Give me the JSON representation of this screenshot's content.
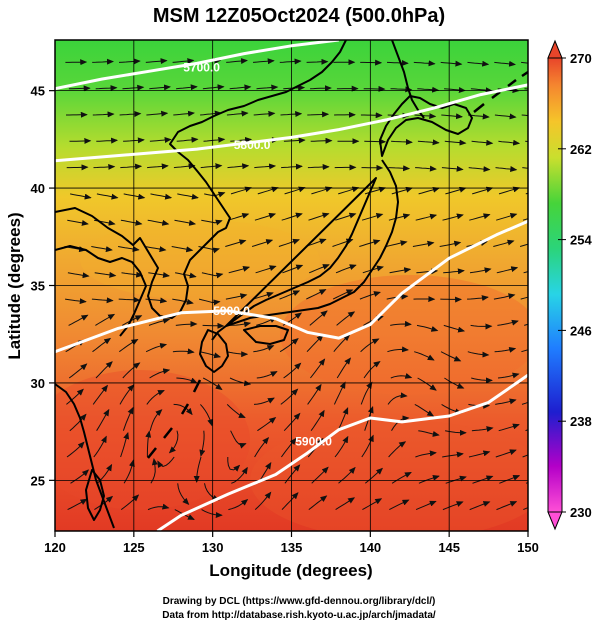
{
  "title": "MSM 12Z05Oct2024 (500.0hPa)",
  "xlabel": "Longitude (degrees)",
  "ylabel": "Latitude  (degrees)",
  "credits": {
    "line1": "Drawing by DCL (https://www.gfd-dennou.org/library/dcl/)",
    "line2": "Data from http://database.rish.kyoto-u.ac.jp/arch/jmadata/"
  },
  "chart_data": {
    "type": "heatmap",
    "variable": "temperature (K) with geopotential height contours and wind streamlines",
    "xlim": [
      120,
      150
    ],
    "ylim": [
      22.4,
      47.6
    ],
    "xticks": [
      120,
      125,
      130,
      135,
      140,
      145,
      150
    ],
    "yticks": [
      25,
      30,
      35,
      40,
      45
    ],
    "grid": true,
    "colorbar": {
      "min": 230,
      "max": 270,
      "ticks": [
        230,
        238,
        246,
        254,
        262,
        270
      ],
      "colormap": "rainbow: magenta-blue-cyan-green-yellow-orange-red"
    },
    "height_contours": [
      {
        "label": "5700.0",
        "points": [
          [
            120,
            45.1
          ],
          [
            123,
            45.6
          ],
          [
            126,
            46.0
          ],
          [
            129,
            46.4
          ],
          [
            132,
            46.9
          ],
          [
            135,
            47.3
          ],
          [
            138,
            47.6
          ]
        ]
      },
      {
        "label": "5800.0",
        "points": [
          [
            120,
            41.4
          ],
          [
            123,
            41.6
          ],
          [
            126,
            41.8
          ],
          [
            129,
            42.0
          ],
          [
            132,
            42.3
          ],
          [
            135,
            42.6
          ],
          [
            138,
            43.0
          ],
          [
            141,
            43.5
          ],
          [
            144,
            44.1
          ],
          [
            147,
            44.8
          ],
          [
            150,
            45.3
          ]
        ]
      },
      {
        "label": "5900.0",
        "points": [
          [
            120,
            31.6
          ],
          [
            122,
            32.2
          ],
          [
            124,
            32.8
          ],
          [
            126,
            33.2
          ],
          [
            128,
            33.6
          ],
          [
            131,
            33.7
          ],
          [
            134,
            33.3
          ],
          [
            136,
            32.6
          ],
          [
            138,
            32.3
          ],
          [
            140,
            33.0
          ],
          [
            142,
            34.6
          ],
          [
            145,
            36.4
          ],
          [
            148,
            37.6
          ],
          [
            150,
            38.3
          ]
        ]
      },
      {
        "label": "5900.0",
        "points": [
          [
            126.5,
            22.4
          ],
          [
            128,
            23.2
          ],
          [
            131,
            24.3
          ],
          [
            134,
            25.3
          ],
          [
            136,
            26.4
          ],
          [
            138,
            27.6
          ],
          [
            140,
            28.2
          ],
          [
            142,
            28.0
          ],
          [
            145,
            28.3
          ],
          [
            147.5,
            29.0
          ],
          [
            150,
            30.4
          ]
        ]
      }
    ],
    "contour_label_positions": [
      {
        "label": "5700.0",
        "at": [
          129.3,
          46.2
        ]
      },
      {
        "label": "5800.0",
        "at": [
          132.5,
          42.2
        ]
      },
      {
        "label": "5900.0",
        "at": [
          131.2,
          33.7
        ]
      },
      {
        "label": "5900.0",
        "at": [
          136.4,
          27.0
        ]
      }
    ]
  }
}
